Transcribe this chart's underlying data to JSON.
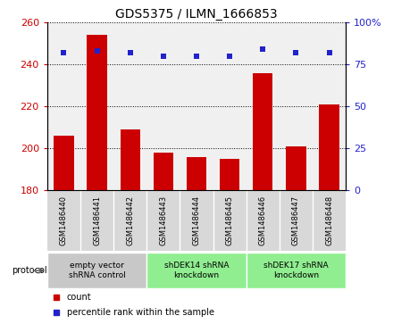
{
  "title": "GDS5375 / ILMN_1666853",
  "samples": [
    "GSM1486440",
    "GSM1486441",
    "GSM1486442",
    "GSM1486443",
    "GSM1486444",
    "GSM1486445",
    "GSM1486446",
    "GSM1486447",
    "GSM1486448"
  ],
  "counts": [
    206,
    254,
    209,
    198,
    196,
    195,
    236,
    201,
    221
  ],
  "percentile_ranks": [
    82,
    83,
    82,
    80,
    80,
    80,
    84,
    82,
    82
  ],
  "groups": [
    {
      "label": "empty vector\nshRNA control",
      "start": 0,
      "end": 3,
      "color": "#c8c8c8"
    },
    {
      "label": "shDEK14 shRNA\nknockdown",
      "start": 3,
      "end": 6,
      "color": "#90EE90"
    },
    {
      "label": "shDEK17 shRNA\nknockdown",
      "start": 6,
      "end": 9,
      "color": "#90EE90"
    }
  ],
  "ylim_left": [
    180,
    260
  ],
  "ylim_right": [
    0,
    100
  ],
  "yticks_left": [
    180,
    200,
    220,
    240,
    260
  ],
  "yticks_right": [
    0,
    25,
    50,
    75,
    100
  ],
  "bar_color": "#CC0000",
  "scatter_color": "#2222CC",
  "tick_color_left": "#CC0000",
  "tick_color_right": "#2222CC",
  "background_color": "#ffffff",
  "plot_bg_color": "#f0f0f0",
  "sample_area_color": "#d8d8d8",
  "legend_count_color": "#CC0000",
  "legend_pct_color": "#2222CC",
  "title_fontsize": 10
}
